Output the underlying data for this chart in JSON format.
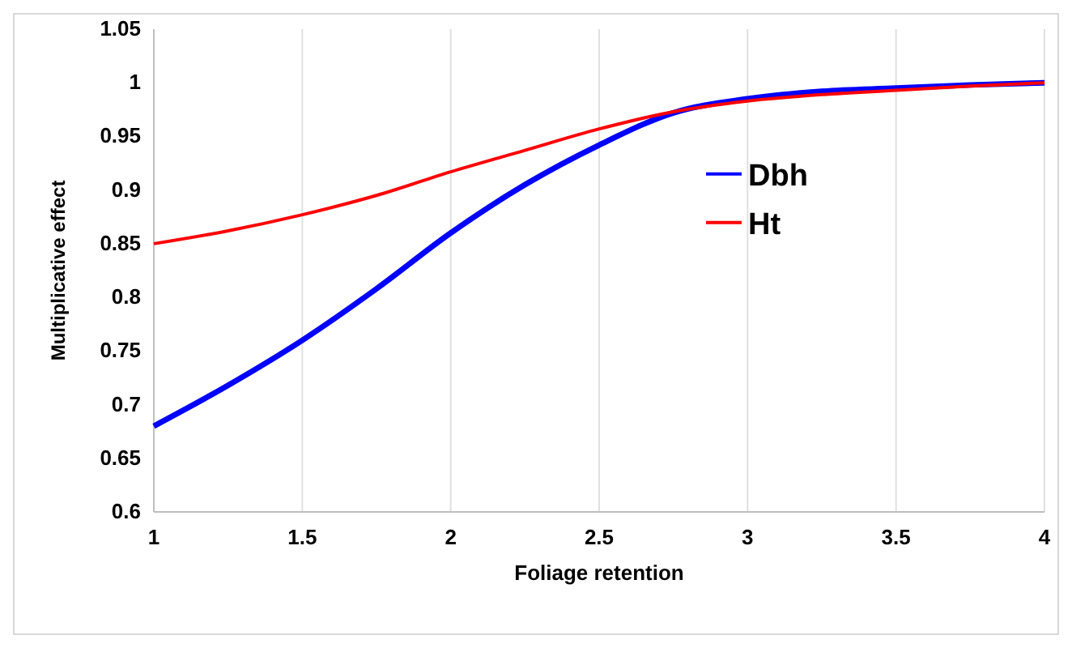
{
  "chart_data": {
    "type": "line",
    "xlabel": "Foliage retention",
    "ylabel": "Multiplicative effect",
    "x": [
      1,
      1.25,
      1.5,
      1.75,
      2,
      2.25,
      2.5,
      2.75,
      3,
      3.25,
      3.5,
      3.75,
      4
    ],
    "series": [
      {
        "name": "Dbh",
        "color": "#0000ff",
        "values": [
          0.68,
          0.718,
          0.76,
          0.808,
          0.86,
          0.905,
          0.942,
          0.972,
          0.985,
          0.992,
          0.995,
          0.998,
          1.0
        ]
      },
      {
        "name": "Ht",
        "color": "#ff0000",
        "values": [
          0.85,
          0.862,
          0.877,
          0.895,
          0.917,
          0.937,
          0.957,
          0.973,
          0.983,
          0.989,
          0.993,
          0.997,
          1.0
        ]
      }
    ],
    "xlim": [
      1,
      4
    ],
    "xticks": [
      1,
      1.5,
      2,
      2.5,
      3,
      3.5,
      4
    ],
    "ylim": [
      0.6,
      1.05
    ],
    "yticks": [
      0.6,
      0.65,
      0.7,
      0.75,
      0.8,
      0.85,
      0.9,
      0.95,
      1,
      1.05
    ],
    "grid": "x",
    "legend": "right",
    "marker": "none",
    "line_style": "solid"
  }
}
